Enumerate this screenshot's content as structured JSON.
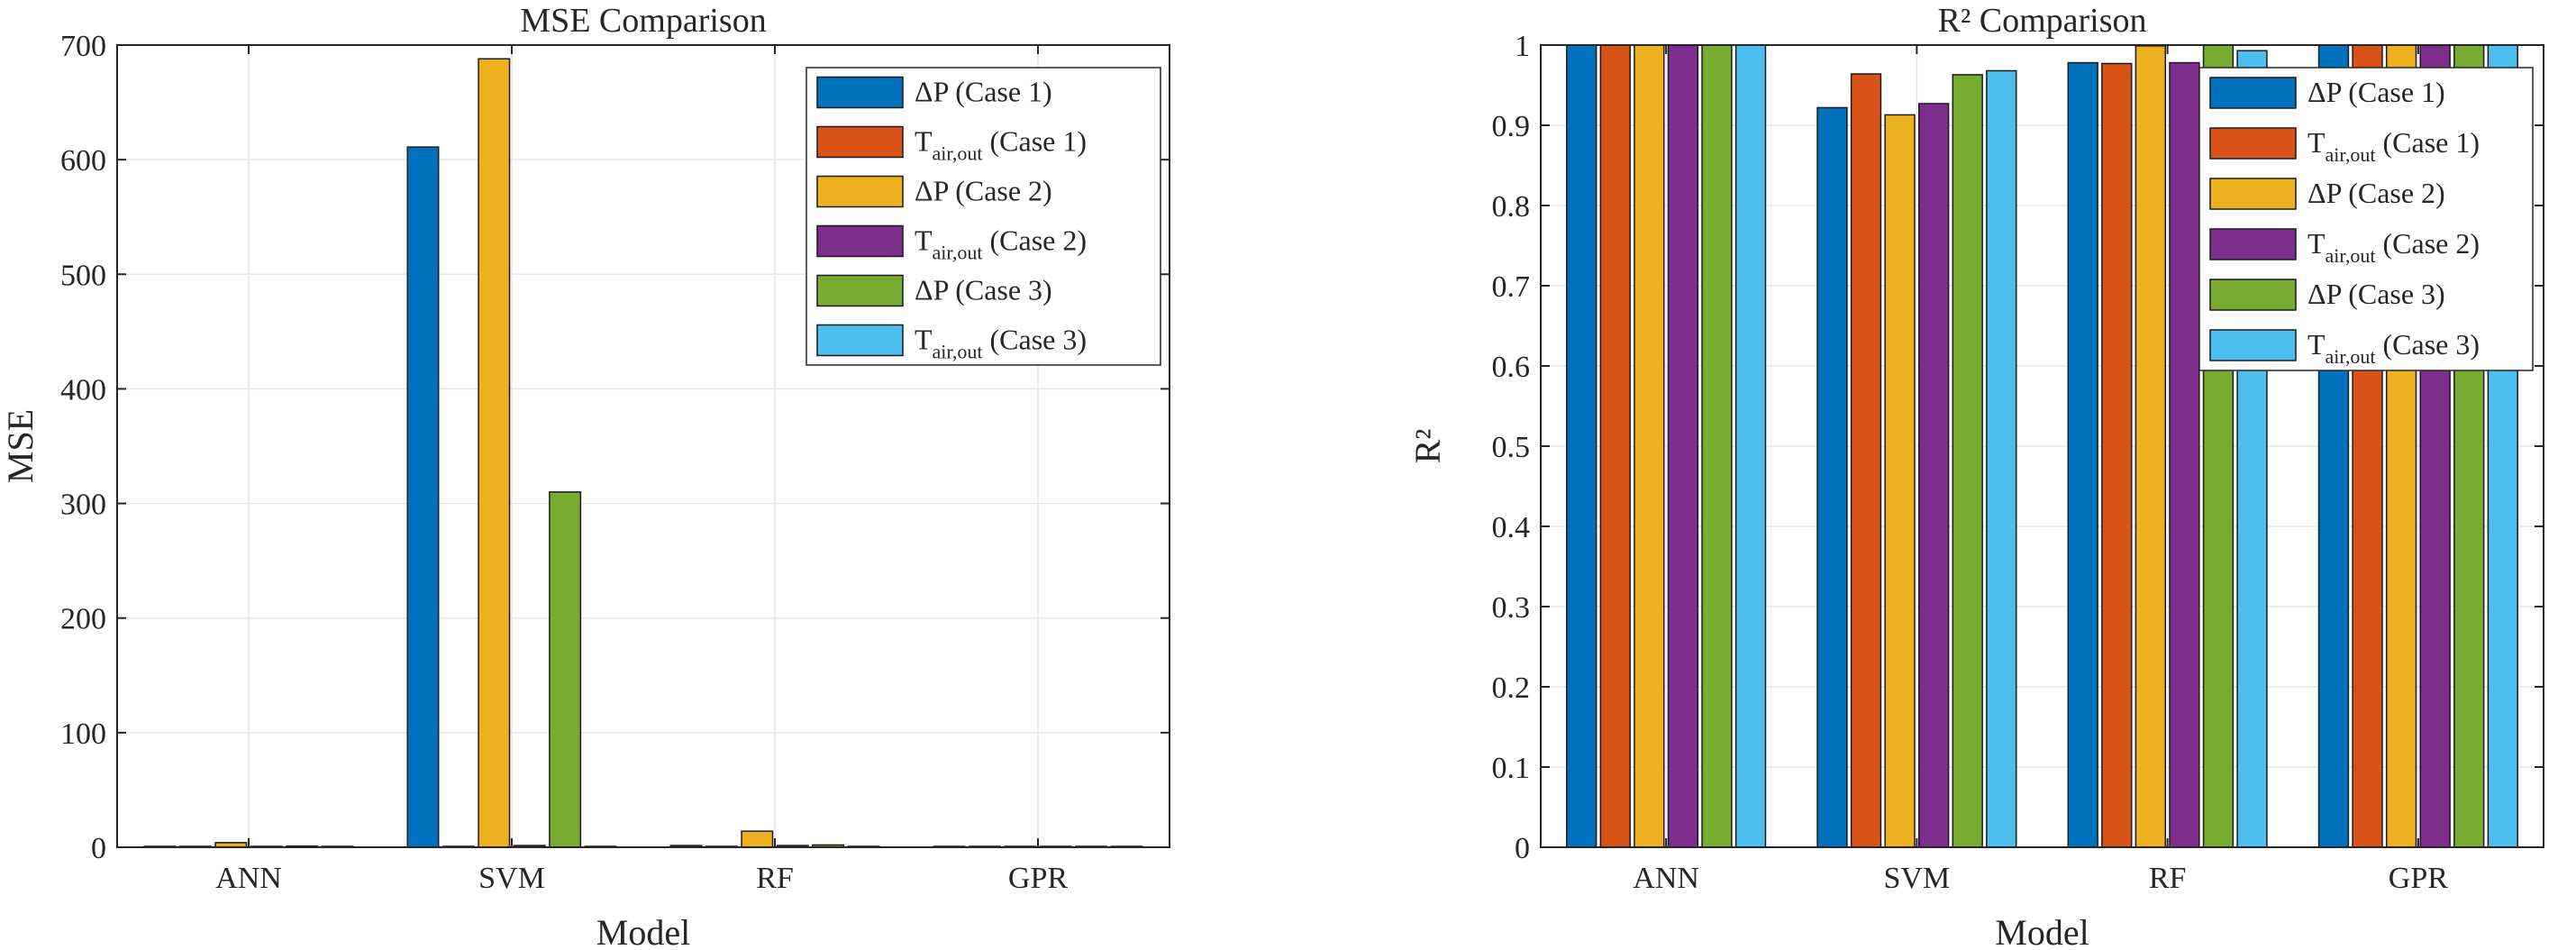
{
  "chart_data": [
    {
      "type": "bar",
      "title": "MSE Comparison",
      "xlabel": "Model",
      "ylabel": "MSE",
      "ylim": [
        0,
        700
      ],
      "yticks": [
        0,
        100,
        200,
        300,
        400,
        500,
        600,
        700
      ],
      "ytick_labels": [
        "0",
        "100",
        "200",
        "300",
        "400",
        "500",
        "600",
        "700"
      ],
      "grid": true,
      "legend_position": "top-right",
      "categories": [
        "ANN",
        "SVM",
        "RF",
        "GPR"
      ],
      "series": [
        {
          "name": "ΔP (Case 1)",
          "label_main": "ΔP",
          "label_sub": "",
          "label_rest": " (Case 1)",
          "color": "#0072BD",
          "values": [
            0.5,
            611,
            1.5,
            0.3
          ]
        },
        {
          "name": "T_air,out (Case 1)",
          "label_main": "T",
          "label_sub": "air,out",
          "label_rest": " (Case 1)",
          "color": "#D95319",
          "values": [
            0.5,
            0.5,
            0.5,
            0.3
          ]
        },
        {
          "name": "ΔP (Case 2)",
          "label_main": "ΔP",
          "label_sub": "",
          "label_rest": " (Case 2)",
          "color": "#EDB120",
          "values": [
            4,
            688,
            14,
            0.3
          ]
        },
        {
          "name": "T_air,out (Case 2)",
          "label_main": "T",
          "label_sub": "air,out",
          "label_rest": " (Case 2)",
          "color": "#7E2F8E",
          "values": [
            0.5,
            1.5,
            1.5,
            0.3
          ]
        },
        {
          "name": "ΔP (Case 3)",
          "label_main": "ΔP",
          "label_sub": "",
          "label_rest": " (Case 3)",
          "color": "#77AC30",
          "values": [
            1,
            310,
            2,
            0.3
          ]
        },
        {
          "name": "T_air,out (Case 3)",
          "label_main": "T",
          "label_sub": "air,out",
          "label_rest": " (Case 3)",
          "color": "#4DBEEE",
          "values": [
            0.5,
            0.5,
            0.5,
            0.3
          ]
        }
      ]
    },
    {
      "type": "bar",
      "title": "R² Comparison",
      "xlabel": "Model",
      "ylabel": "R²",
      "ylim": [
        0,
        1
      ],
      "yticks": [
        0,
        0.1,
        0.2,
        0.3,
        0.4,
        0.5,
        0.6,
        0.7,
        0.8,
        0.9,
        1
      ],
      "ytick_labels": [
        "0",
        "0.1",
        "0.2",
        "0.3",
        "0.4",
        "0.5",
        "0.6",
        "0.7",
        "0.8",
        "0.9",
        "1"
      ],
      "grid": true,
      "legend_position": "top-right",
      "categories": [
        "ANN",
        "SVM",
        "RF",
        "GPR"
      ],
      "series": [
        {
          "name": "ΔP (Case 1)",
          "label_main": "ΔP",
          "label_sub": "",
          "label_rest": " (Case 1)",
          "color": "#0072BD",
          "values": [
            1.0,
            0.922,
            0.978,
            1.0
          ]
        },
        {
          "name": "T_air,out (Case 1)",
          "label_main": "T",
          "label_sub": "air,out",
          "label_rest": " (Case 1)",
          "color": "#D95319",
          "values": [
            1.0,
            0.964,
            0.977,
            1.0
          ]
        },
        {
          "name": "ΔP (Case 2)",
          "label_main": "ΔP",
          "label_sub": "",
          "label_rest": " (Case 2)",
          "color": "#EDB120",
          "values": [
            1.0,
            0.913,
            0.999,
            1.0
          ]
        },
        {
          "name": "T_air,out (Case 2)",
          "label_main": "T",
          "label_sub": "air,out",
          "label_rest": " (Case 2)",
          "color": "#7E2F8E",
          "values": [
            1.0,
            0.927,
            0.978,
            1.0
          ]
        },
        {
          "name": "ΔP (Case 3)",
          "label_main": "ΔP",
          "label_sub": "",
          "label_rest": " (Case 3)",
          "color": "#77AC30",
          "values": [
            1.0,
            0.963,
            1.0,
            1.0
          ]
        },
        {
          "name": "T_air,out (Case 3)",
          "label_main": "T",
          "label_sub": "air,out",
          "label_rest": " (Case 3)",
          "color": "#4DBEEE",
          "values": [
            1.0,
            0.968,
            0.993,
            1.0
          ]
        }
      ]
    }
  ]
}
